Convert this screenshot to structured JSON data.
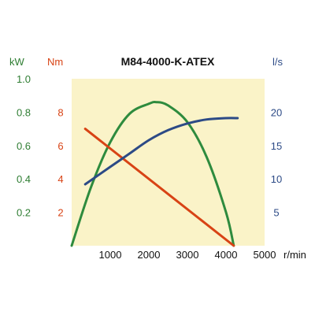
{
  "chart_data": {
    "type": "line",
    "title": "M84-4000-K-ATEX",
    "x_unit": "r/min",
    "xlim": [
      0,
      5000
    ],
    "x_ticks": [
      "1000",
      "2000",
      "3000",
      "4000",
      "5000"
    ],
    "axes": {
      "power": {
        "unit": "kW",
        "color": "#2e7d32",
        "ylim": [
          0,
          1.0
        ],
        "ticks": [
          "0.2",
          "0.4",
          "0.6",
          "0.8",
          "1.0"
        ]
      },
      "torque": {
        "unit": "Nm",
        "color": "#d84315",
        "ylim": [
          0,
          10
        ],
        "ticks": [
          "2",
          "4",
          "6",
          "8"
        ]
      },
      "flow": {
        "unit": "l/s",
        "color": "#2c4a86",
        "ylim": [
          0,
          25
        ],
        "ticks": [
          "5",
          "10",
          "15",
          "20"
        ]
      }
    },
    "series": [
      {
        "axis": "power",
        "color": "#2e8b3e",
        "x": [
          0,
          500,
          1000,
          1500,
          2000,
          2200,
          2500,
          3000,
          3500,
          4000,
          4200
        ],
        "y": [
          0,
          0.35,
          0.62,
          0.79,
          0.85,
          0.86,
          0.84,
          0.74,
          0.53,
          0.2,
          0
        ]
      },
      {
        "axis": "torque",
        "color": "#d84315",
        "x": [
          350,
          4200
        ],
        "y": [
          7.0,
          0
        ]
      },
      {
        "axis": "flow",
        "color": "#2c4a86",
        "x": [
          350,
          1000,
          1500,
          2000,
          2500,
          3000,
          3500,
          4000,
          4300
        ],
        "y": [
          9.2,
          11.8,
          13.8,
          15.8,
          17.3,
          18.3,
          18.9,
          19.1,
          19.1
        ]
      }
    ],
    "plot_background": "#faf3c8"
  }
}
